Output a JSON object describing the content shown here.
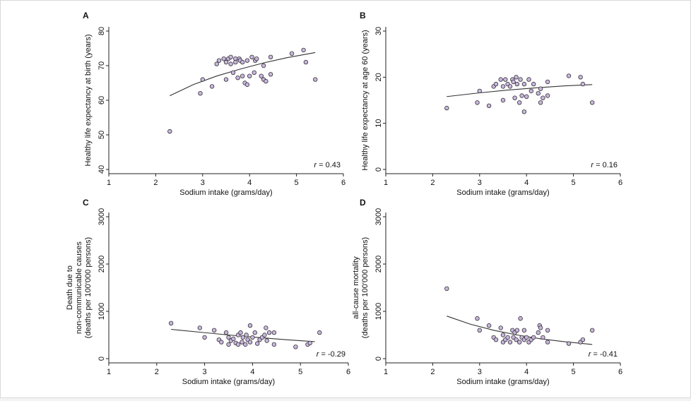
{
  "figure": {
    "background": "#ffffff",
    "marker_fill": "#c9b6df",
    "marker_stroke": "#333333"
  },
  "chart_data": [
    {
      "type": "scatter",
      "panel": "A",
      "xlabel": "Sodium intake (grams/day)",
      "ylabel": [
        "Healthy life expectancy at birth (years)"
      ],
      "xlim": [
        1,
        6
      ],
      "ylim": [
        40,
        80
      ],
      "xticks": [
        "1",
        "2",
        "3",
        "4",
        "5",
        "6"
      ],
      "yticks": [
        "40",
        "50",
        "60",
        "70",
        "80"
      ],
      "r_prefix": "r",
      "r_value": " = 0.43",
      "points": [
        [
          2.3,
          51
        ],
        [
          2.95,
          62
        ],
        [
          3.0,
          66
        ],
        [
          3.2,
          64
        ],
        [
          3.3,
          70.5
        ],
        [
          3.35,
          71.5
        ],
        [
          3.45,
          72
        ],
        [
          3.5,
          66
        ],
        [
          3.5,
          71
        ],
        [
          3.55,
          72
        ],
        [
          3.6,
          72.5
        ],
        [
          3.6,
          70.5
        ],
        [
          3.65,
          68
        ],
        [
          3.7,
          72
        ],
        [
          3.7,
          71
        ],
        [
          3.75,
          66.5
        ],
        [
          3.78,
          72
        ],
        [
          3.8,
          71.5
        ],
        [
          3.85,
          67
        ],
        [
          3.85,
          71
        ],
        [
          3.9,
          65
        ],
        [
          3.95,
          64.5
        ],
        [
          3.95,
          71.5
        ],
        [
          4.0,
          67
        ],
        [
          4.05,
          72.5
        ],
        [
          4.1,
          68
        ],
        [
          4.12,
          71.5
        ],
        [
          4.15,
          72
        ],
        [
          4.25,
          67
        ],
        [
          4.3,
          66
        ],
        [
          4.3,
          70
        ],
        [
          4.35,
          65.5
        ],
        [
          4.45,
          72.5
        ],
        [
          4.45,
          67.5
        ],
        [
          4.9,
          73.5
        ],
        [
          5.15,
          74.5
        ],
        [
          5.2,
          71
        ],
        [
          5.4,
          66
        ]
      ],
      "fit": [
        [
          2.3,
          61.3
        ],
        [
          2.8,
          64.5
        ],
        [
          3.3,
          67
        ],
        [
          3.8,
          69
        ],
        [
          4.3,
          70.8
        ],
        [
          4.8,
          72.3
        ],
        [
          5.4,
          73.8
        ]
      ]
    },
    {
      "type": "scatter",
      "panel": "B",
      "xlabel": "Sodium intake (grams/day)",
      "ylabel": [
        "Healthy life expectancy at age 60 (years)"
      ],
      "xlim": [
        1,
        6
      ],
      "ylim": [
        0,
        30
      ],
      "xticks": [
        "1",
        "2",
        "3",
        "4",
        "5",
        "6"
      ],
      "yticks": [
        "0",
        "10",
        "20",
        "30"
      ],
      "r_prefix": "r",
      "r_value": " = 0.16",
      "points": [
        [
          2.3,
          13.3
        ],
        [
          2.95,
          14.5
        ],
        [
          3.0,
          17
        ],
        [
          3.2,
          13.8
        ],
        [
          3.3,
          18
        ],
        [
          3.35,
          18.5
        ],
        [
          3.45,
          19.5
        ],
        [
          3.5,
          15
        ],
        [
          3.5,
          18
        ],
        [
          3.55,
          19.5
        ],
        [
          3.6,
          18.5
        ],
        [
          3.65,
          18
        ],
        [
          3.7,
          19.5
        ],
        [
          3.72,
          19
        ],
        [
          3.75,
          15.5
        ],
        [
          3.78,
          20
        ],
        [
          3.8,
          18.5
        ],
        [
          3.85,
          14.5
        ],
        [
          3.87,
          19.5
        ],
        [
          3.9,
          16
        ],
        [
          3.95,
          12.5
        ],
        [
          3.95,
          18.5
        ],
        [
          4.0,
          15.8
        ],
        [
          4.05,
          19.5
        ],
        [
          4.1,
          17
        ],
        [
          4.15,
          18.5
        ],
        [
          4.25,
          16.5
        ],
        [
          4.3,
          14.5
        ],
        [
          4.3,
          17.5
        ],
        [
          4.35,
          15.5
        ],
        [
          4.45,
          19
        ],
        [
          4.45,
          16
        ],
        [
          4.9,
          20.3
        ],
        [
          5.15,
          20
        ],
        [
          5.2,
          18.5
        ],
        [
          5.4,
          14.5
        ]
      ],
      "fit": [
        [
          2.3,
          15.8
        ],
        [
          3.0,
          16.6
        ],
        [
          3.6,
          17.2
        ],
        [
          4.2,
          17.7
        ],
        [
          4.8,
          18.1
        ],
        [
          5.4,
          18.4
        ]
      ]
    },
    {
      "type": "scatter",
      "panel": "C",
      "xlabel": "Sodium intake (grams/day)",
      "ylabel": [
        "Death due to",
        "non-communicable causes",
        "(deaths per 100'000 persons)"
      ],
      "xlim": [
        1,
        6
      ],
      "ylim": [
        0,
        3000
      ],
      "xticks": [
        "1",
        "2",
        "3",
        "4",
        "5",
        "6"
      ],
      "yticks": [
        "0",
        "1000",
        "2000",
        "3000"
      ],
      "r_prefix": "r",
      "r_value": " = -0.29",
      "points": [
        [
          2.3,
          750
        ],
        [
          2.9,
          650
        ],
        [
          3.0,
          450
        ],
        [
          3.2,
          600
        ],
        [
          3.3,
          400
        ],
        [
          3.35,
          350
        ],
        [
          3.45,
          550
        ],
        [
          3.5,
          300
        ],
        [
          3.5,
          450
        ],
        [
          3.55,
          380
        ],
        [
          3.6,
          420
        ],
        [
          3.65,
          330
        ],
        [
          3.7,
          300
        ],
        [
          3.7,
          500
        ],
        [
          3.75,
          550
        ],
        [
          3.78,
          350
        ],
        [
          3.8,
          450
        ],
        [
          3.85,
          300
        ],
        [
          3.87,
          500
        ],
        [
          3.9,
          400
        ],
        [
          3.95,
          700
        ],
        [
          3.95,
          350
        ],
        [
          4.0,
          450
        ],
        [
          4.05,
          550
        ],
        [
          4.1,
          320
        ],
        [
          4.15,
          400
        ],
        [
          4.2,
          450
        ],
        [
          4.25,
          500
        ],
        [
          4.28,
          650
        ],
        [
          4.3,
          380
        ],
        [
          4.35,
          550
        ],
        [
          4.45,
          300
        ],
        [
          4.45,
          550
        ],
        [
          4.9,
          250
        ],
        [
          5.15,
          300
        ],
        [
          5.2,
          330
        ],
        [
          5.4,
          550
        ]
      ],
      "fit": [
        [
          2.3,
          620
        ],
        [
          2.9,
          560
        ],
        [
          3.5,
          500
        ],
        [
          4.1,
          450
        ],
        [
          4.7,
          400
        ],
        [
          5.3,
          360
        ]
      ]
    },
    {
      "type": "scatter",
      "panel": "D",
      "xlabel": "Sodium intake (grams/day)",
      "ylabel": [
        "all-cause mortality",
        "(deaths per 100'000 persons)"
      ],
      "xlim": [
        1,
        6
      ],
      "ylim": [
        0,
        3000
      ],
      "xticks": [
        "1",
        "2",
        "3",
        "4",
        "5",
        "6"
      ],
      "yticks": [
        "0",
        "1000",
        "2000",
        "3000"
      ],
      "r_prefix": "r",
      "r_value": " = -0.41",
      "points": [
        [
          2.3,
          1480
        ],
        [
          2.95,
          850
        ],
        [
          3.0,
          600
        ],
        [
          3.2,
          700
        ],
        [
          3.3,
          450
        ],
        [
          3.35,
          400
        ],
        [
          3.45,
          650
        ],
        [
          3.5,
          350
        ],
        [
          3.5,
          500
        ],
        [
          3.55,
          400
        ],
        [
          3.6,
          450
        ],
        [
          3.65,
          350
        ],
        [
          3.7,
          600
        ],
        [
          3.72,
          450
        ],
        [
          3.75,
          550
        ],
        [
          3.78,
          400
        ],
        [
          3.8,
          600
        ],
        [
          3.85,
          350
        ],
        [
          3.87,
          850
        ],
        [
          3.9,
          450
        ],
        [
          3.95,
          600
        ],
        [
          3.95,
          400
        ],
        [
          4.0,
          450
        ],
        [
          4.05,
          350
        ],
        [
          4.1,
          400
        ],
        [
          4.15,
          450
        ],
        [
          4.25,
          550
        ],
        [
          4.28,
          700
        ],
        [
          4.3,
          650
        ],
        [
          4.35,
          450
        ],
        [
          4.45,
          350
        ],
        [
          4.45,
          600
        ],
        [
          4.9,
          320
        ],
        [
          5.15,
          350
        ],
        [
          5.2,
          400
        ],
        [
          5.4,
          600
        ]
      ],
      "fit": [
        [
          2.3,
          900
        ],
        [
          2.8,
          730
        ],
        [
          3.3,
          600
        ],
        [
          3.8,
          500
        ],
        [
          4.3,
          420
        ],
        [
          4.8,
          360
        ],
        [
          5.4,
          300
        ]
      ]
    }
  ]
}
